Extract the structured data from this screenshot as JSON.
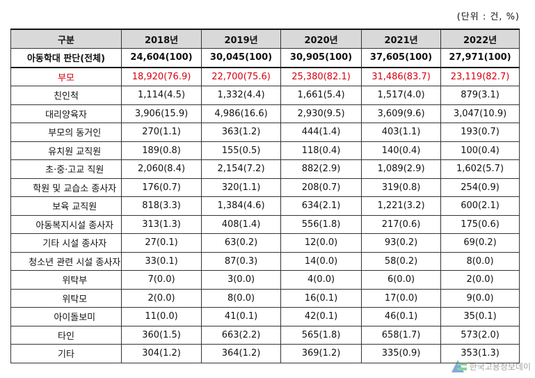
{
  "unit": "(단위 : 건, %)",
  "header": [
    "구분",
    "2018년",
    "2019년",
    "2020년",
    "2021년",
    "2022년"
  ],
  "total": {
    "label": "아동학대 판단(전체)",
    "values": [
      "24,604(100)",
      "30,045(100)",
      "30,905(100)",
      "37,605(100)",
      "27,971(100)"
    ]
  },
  "parent": {
    "label": "부모",
    "values": [
      "18,920(76.9)",
      "22,700(75.6)",
      "25,380(82.1)",
      "31,486(83.7)",
      "23,119(82.7)"
    ]
  },
  "relative": {
    "label": "친인척",
    "values": [
      "1,114(4.5)",
      "1,332(4.4)",
      "1,661(5.4)",
      "1,517(4.0)",
      "879(3.1)"
    ]
  },
  "caregiver": {
    "label": "대리양육자",
    "values": [
      "3,906(15.9)",
      "4,986(16.6)",
      "2,930(9.5)",
      "3,609(9.6)",
      "3,047(10.9)"
    ]
  },
  "sub_rows": [
    {
      "label": "부모의 동거인",
      "values": [
        "270(1.1)",
        "363(1.2)",
        "444(1.4)",
        "403(1.1)",
        "193(0.7)"
      ]
    },
    {
      "label": "유치원 교직원",
      "values": [
        "189(0.8)",
        "155(0.5)",
        "118(0.4)",
        "140(0.4)",
        "100(0.4)"
      ]
    },
    {
      "label": "초·중·고교 직원",
      "values": [
        "2,060(8.4)",
        "2,154(7.2)",
        "882(2.9)",
        "1,089(2.9)",
        "1,602(5.7)"
      ]
    },
    {
      "label": "학원 및 교습소 종사자",
      "values": [
        "176(0.7)",
        "320(1.1)",
        "208(0.7)",
        "319(0.8)",
        "254(0.9)"
      ]
    },
    {
      "label": "보육 교직원",
      "values": [
        "818(3.3)",
        "1,384(4.6)",
        "634(2.1)",
        "1,221(3.2)",
        "600(2.1)"
      ]
    },
    {
      "label": "아동복지시설 종사자",
      "values": [
        "313(1.3)",
        "408(1.4)",
        "556(1.8)",
        "217(0.6)",
        "175(0.6)"
      ]
    },
    {
      "label": "기타 시설 종사자",
      "values": [
        "27(0.1)",
        "63(0.2)",
        "12(0.0)",
        "93(0.2)",
        "69(0.2)"
      ]
    },
    {
      "label": "청소년 관련 시설 종사자",
      "values": [
        "33(0.1)",
        "87(0.3)",
        "14(0.0)",
        "58(0.2)",
        "8(0.0)"
      ]
    },
    {
      "label": "위탁부",
      "values": [
        "7(0.0)",
        "3(0.0)",
        "4(0.0)",
        "6(0.0)",
        "2(0.0)"
      ]
    },
    {
      "label": "위탁모",
      "values": [
        "2(0.0)",
        "8(0.0)",
        "16(0.1)",
        "17(0.0)",
        "9(0.0)"
      ]
    },
    {
      "label": "아이돌보미",
      "values": [
        "11(0.0)",
        "41(0.1)",
        "42(0.1)",
        "46(0.1)",
        "35(0.1)"
      ]
    }
  ],
  "stranger": {
    "label": "타인",
    "values": [
      "360(1.5)",
      "663(2.2)",
      "565(1.8)",
      "658(1.7)",
      "573(2.0)"
    ]
  },
  "other": {
    "label": "기타",
    "values": [
      "304(1.2)",
      "364(1.2)",
      "369(1.2)",
      "335(0.9)",
      "353(1.3)"
    ]
  },
  "watermark": "한국고용정보데이",
  "colors": {
    "header_bg": "#d9d9d9",
    "parent_text": "#d7000f"
  }
}
